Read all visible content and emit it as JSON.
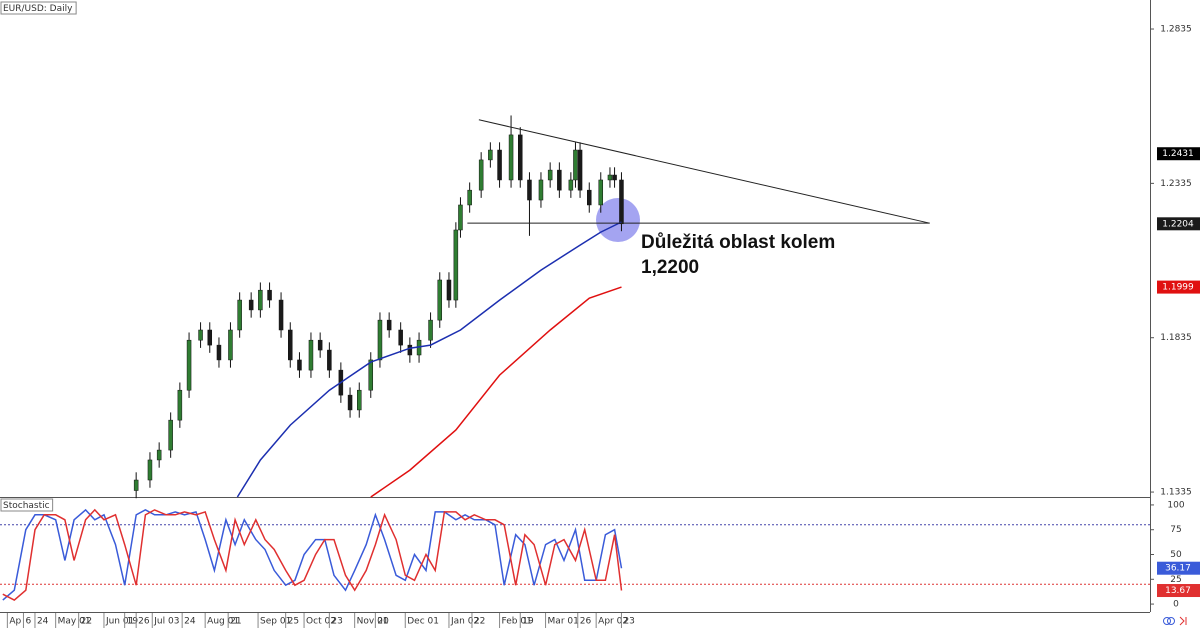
{
  "chart_data": [
    {
      "type": "candlestick",
      "title": "EUR/USD: Daily",
      "x": [
        57,
        63,
        67,
        72,
        76,
        80,
        85,
        89,
        93,
        98,
        102,
        107,
        111,
        115,
        120,
        124,
        128,
        133,
        137,
        141,
        146,
        150,
        154,
        159,
        163,
        167,
        172,
        176,
        180,
        185,
        189,
        193,
        196,
        198,
        202,
        207,
        211,
        215,
        220,
        224,
        228,
        233,
        237,
        241,
        246,
        248,
        250,
        254,
        259,
        263,
        265,
        268
      ],
      "open": [
        1.134,
        1.1374,
        1.1439,
        1.1471,
        1.1568,
        1.1665,
        1.1827,
        1.186,
        1.1811,
        1.1763,
        1.186,
        1.1957,
        1.1925,
        1.1989,
        1.1957,
        1.186,
        1.1763,
        1.173,
        1.1827,
        1.1795,
        1.173,
        1.1649,
        1.1601,
        1.1665,
        1.1763,
        1.1892,
        1.186,
        1.1811,
        1.1779,
        1.1827,
        1.1892,
        1.2022,
        1.1957,
        1.2184,
        1.2265,
        1.2313,
        1.2411,
        1.2443,
        1.2346,
        1.2492,
        1.2346,
        1.2281,
        1.2346,
        1.2378,
        1.2313,
        1.2346,
        1.2443,
        1.2313,
        1.2265,
        1.2346,
        1.2362,
        1.2346
      ],
      "high": [
        1.1399,
        1.1464,
        1.1496,
        1.1593,
        1.169,
        1.1852,
        1.1885,
        1.1885,
        1.1836,
        1.1885,
        1.1982,
        1.1982,
        1.2014,
        1.2014,
        1.1982,
        1.1885,
        1.1788,
        1.1852,
        1.1852,
        1.182,
        1.1755,
        1.1674,
        1.169,
        1.1788,
        1.1917,
        1.1917,
        1.1885,
        1.1836,
        1.1852,
        1.1917,
        1.2047,
        1.2047,
        1.2209,
        1.229,
        1.2338,
        1.2436,
        1.2468,
        1.2468,
        1.2555,
        1.2517,
        1.2371,
        1.2371,
        1.2403,
        1.2403,
        1.2371,
        1.2468,
        1.2468,
        1.2338,
        1.2371,
        1.2387,
        1.2387,
        1.2371
      ],
      "low": [
        1.1315,
        1.1349,
        1.1414,
        1.1446,
        1.1543,
        1.164,
        1.1802,
        1.1786,
        1.1738,
        1.1738,
        1.1835,
        1.19,
        1.19,
        1.1932,
        1.1835,
        1.1738,
        1.1705,
        1.1705,
        1.177,
        1.1705,
        1.1624,
        1.1576,
        1.1576,
        1.164,
        1.1738,
        1.1835,
        1.1786,
        1.1754,
        1.1754,
        1.1802,
        1.1867,
        1.1932,
        1.1932,
        1.2159,
        1.224,
        1.2288,
        1.2386,
        1.2321,
        1.2321,
        1.2321,
        1.2165,
        1.2256,
        1.2321,
        1.2288,
        1.2288,
        1.2321,
        1.2288,
        1.224,
        1.224,
        1.2321,
        1.2321,
        1.218
      ],
      "close": [
        1.1374,
        1.1439,
        1.1471,
        1.1568,
        1.1665,
        1.1827,
        1.186,
        1.1811,
        1.1763,
        1.186,
        1.1957,
        1.1925,
        1.1989,
        1.1957,
        1.186,
        1.1763,
        1.173,
        1.1827,
        1.1795,
        1.173,
        1.1649,
        1.1601,
        1.1665,
        1.1763,
        1.1892,
        1.186,
        1.1811,
        1.1779,
        1.1827,
        1.1892,
        1.2022,
        1.1957,
        1.2184,
        1.2265,
        1.2313,
        1.2411,
        1.2443,
        1.2346,
        1.2492,
        1.2346,
        1.2281,
        1.2346,
        1.2378,
        1.2313,
        1.2346,
        1.2443,
        1.2313,
        1.2265,
        1.2346,
        1.2362,
        1.2346,
        1.2204
      ],
      "up_color": "#2f7d32",
      "down_color": "#1a1a1a",
      "show_last_value": true,
      "xlim": [
        -2.2,
        497.8
      ],
      "ylim": [
        1.1319,
        1.2929
      ],
      "yticks": [
        1.1335,
        1.1835,
        1.2335,
        1.2835
      ],
      "overlays": [
        {
          "color": "#1c2fb0",
          "show_last_value": false,
          "x": [
            101,
            111,
            124,
            141,
            159,
            176,
            185,
            198,
            215,
            233,
            250,
            259,
            268
          ],
          "values": [
            1.1319,
            1.1439,
            1.1552,
            1.1665,
            1.1756,
            1.1801,
            1.1811,
            1.186,
            1.1957,
            1.2054,
            1.2135,
            1.2177,
            1.221
          ]
        },
        {
          "color": "#e01010",
          "show_last_value": true,
          "x": [
            159,
            176,
            196,
            215,
            237,
            254,
            268
          ],
          "values": [
            1.1319,
            1.1406,
            1.1536,
            1.1714,
            1.186,
            1.1963,
            1.1999
          ]
        }
      ],
      "trendlines": [
        {
          "color": "#222",
          "x": [
            206,
            402
          ],
          "values": [
            1.2541,
            1.2206
          ]
        },
        {
          "color": "#222",
          "x": [
            201,
            402
          ],
          "values": [
            1.2206,
            1.2206
          ]
        }
      ],
      "price_tags": [
        {
          "value": 1.2431,
          "color": "#000"
        }
      ],
      "annotation": [
        "Důležitá oblast kolem",
        "1,2200"
      ]
    },
    {
      "type": "line",
      "title": "Stochastic",
      "xlim": [
        -2.2,
        497.8
      ],
      "ylim": [
        -8,
        108
      ],
      "yticks": [
        0,
        25,
        50,
        75,
        100
      ],
      "levels": [
        {
          "value": 20,
          "color": "#d33"
        },
        {
          "value": 80,
          "color": "#44a"
        }
      ],
      "series": [
        {
          "color": "#3a5bd9",
          "show_last_value": true,
          "x": [
            -1,
            4,
            9,
            13,
            17,
            22,
            26,
            30,
            35,
            39,
            43,
            48,
            52,
            57,
            61,
            65,
            70,
            74,
            78,
            83,
            87,
            91,
            96,
            100,
            104,
            109,
            113,
            117,
            122,
            126,
            130,
            135,
            139,
            143,
            148,
            152,
            157,
            161,
            165,
            170,
            174,
            178,
            183,
            187,
            191,
            196,
            200,
            204,
            209,
            213,
            217,
            222,
            226,
            230,
            235,
            239,
            243,
            248,
            252,
            257,
            261,
            265,
            268
          ],
          "values": [
            4,
            14,
            75,
            90,
            90,
            85,
            44,
            85,
            95,
            85,
            90,
            60,
            19,
            90,
            95,
            90,
            90,
            93,
            90,
            93,
            65,
            34,
            85,
            60,
            85,
            65,
            55,
            34,
            19,
            24,
            50,
            65,
            65,
            29,
            14,
            34,
            60,
            90,
            65,
            29,
            24,
            50,
            34,
            93,
            93,
            85,
            90,
            85,
            85,
            80,
            19,
            70,
            60,
            19,
            60,
            65,
            44,
            75,
            24,
            24,
            70,
            75,
            36.17
          ]
        },
        {
          "color": "#e03030",
          "show_last_value": true,
          "x": [
            -1,
            4,
            9,
            13,
            17,
            22,
            26,
            30,
            35,
            39,
            43,
            48,
            52,
            57,
            61,
            65,
            70,
            74,
            78,
            83,
            87,
            91,
            96,
            100,
            104,
            109,
            113,
            117,
            122,
            126,
            130,
            135,
            139,
            143,
            148,
            152,
            157,
            161,
            165,
            170,
            174,
            178,
            183,
            187,
            191,
            196,
            200,
            204,
            209,
            213,
            217,
            222,
            226,
            230,
            235,
            239,
            243,
            248,
            252,
            257,
            261,
            265,
            268
          ],
          "values": [
            10,
            4,
            14,
            75,
            90,
            90,
            85,
            44,
            85,
            95,
            85,
            90,
            60,
            19,
            90,
            95,
            90,
            90,
            93,
            90,
            93,
            65,
            34,
            85,
            60,
            85,
            65,
            55,
            34,
            19,
            24,
            50,
            65,
            65,
            29,
            14,
            34,
            60,
            90,
            65,
            29,
            24,
            50,
            34,
            93,
            93,
            85,
            90,
            85,
            85,
            80,
            19,
            70,
            60,
            19,
            60,
            65,
            44,
            75,
            24,
            24,
            70,
            13.67
          ]
        }
      ],
      "xticks": [
        {
          "value": 1,
          "label": "Ap"
        },
        {
          "value": 8,
          "label": "6"
        },
        {
          "value": 13,
          "label": "24"
        },
        {
          "value": 22,
          "label": "May 01"
        },
        {
          "value": 32,
          "label": "22"
        },
        {
          "value": 43,
          "label": "Jun 01"
        },
        {
          "value": 52,
          "label": "19"
        },
        {
          "value": 57,
          "label": "26"
        },
        {
          "value": 64,
          "label": "Jul 03"
        },
        {
          "value": 77,
          "label": "24"
        },
        {
          "value": 87,
          "label": "Aug 01"
        },
        {
          "value": 97,
          "label": "21"
        },
        {
          "value": 110,
          "label": "Sep 01"
        },
        {
          "value": 122,
          "label": "25"
        },
        {
          "value": 130,
          "label": "Oct 02"
        },
        {
          "value": 141,
          "label": "23"
        },
        {
          "value": 152,
          "label": "Nov 01"
        },
        {
          "value": 161,
          "label": "20"
        },
        {
          "value": 174,
          "label": "Dec 01"
        },
        {
          "value": 193,
          "label": "Jan 02"
        },
        {
          "value": 203,
          "label": "22"
        },
        {
          "value": 215,
          "label": "Feb 01"
        },
        {
          "value": 224,
          "label": "19"
        },
        {
          "value": 235,
          "label": "Mar 01"
        },
        {
          "value": 249,
          "label": "26"
        },
        {
          "value": 257,
          "label": "Apr 02"
        },
        {
          "value": 268,
          "label": "23"
        }
      ]
    }
  ]
}
